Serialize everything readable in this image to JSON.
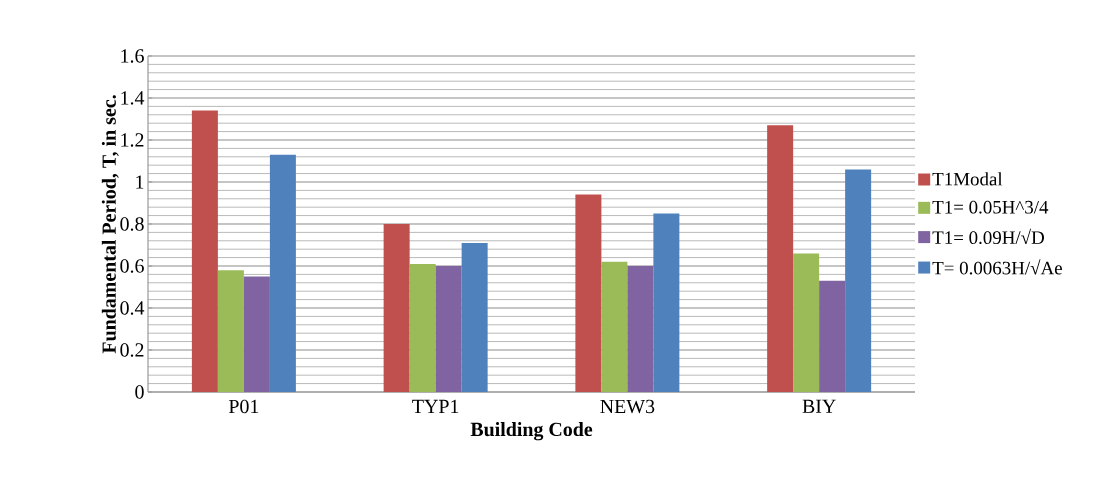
{
  "chart_data": {
    "type": "bar",
    "xlabel": "Building Code",
    "ylabel": "Fundamental Period, T, in sec.",
    "categories": [
      "P01",
      "TYP1",
      "NEW3",
      "BIY"
    ],
    "series": [
      {
        "name": "T1Modal",
        "color": "#c0504d",
        "values": [
          1.34,
          0.8,
          0.94,
          1.27
        ]
      },
      {
        "name": "T1= 0.05H^3/4",
        "color": "#9bbb59",
        "values": [
          0.58,
          0.61,
          0.62,
          0.66
        ]
      },
      {
        "name": "T1= 0.09H/√D",
        "color": "#8064a2",
        "values": [
          0.55,
          0.6,
          0.6,
          0.53
        ]
      },
      {
        "name": "T= 0.0063H/√Ae",
        "color": "#4f81bd",
        "values": [
          1.13,
          0.71,
          0.85,
          1.06
        ]
      }
    ],
    "ylim": [
      0,
      1.6
    ],
    "yticks": [
      0,
      0.2,
      0.4,
      0.6,
      0.8,
      1,
      1.2,
      1.4,
      1.6
    ],
    "grid": "y",
    "legend": "right"
  }
}
